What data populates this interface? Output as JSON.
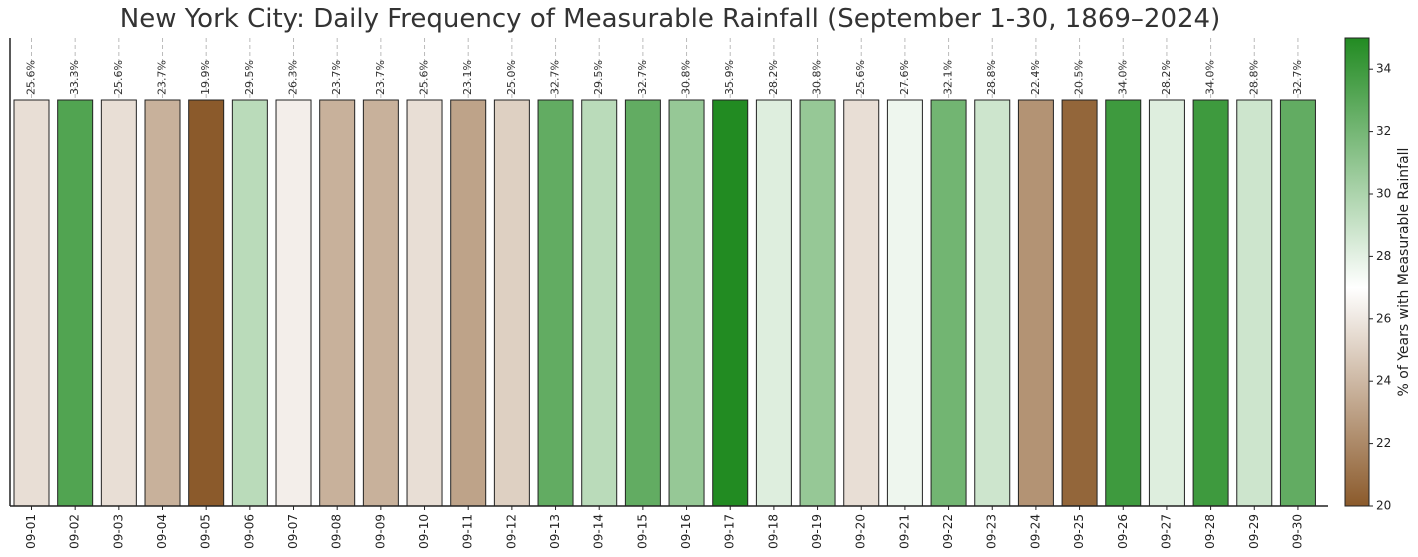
{
  "chart_data": {
    "type": "bar",
    "title": "New York City: Daily Frequency of Measurable Rainfall (September 1-30, 1869–2024)",
    "xlabel": "",
    "ylabel": "",
    "categories": [
      "09-01",
      "09-02",
      "09-03",
      "09-04",
      "09-05",
      "09-06",
      "09-07",
      "09-08",
      "09-09",
      "09-10",
      "09-11",
      "09-12",
      "09-13",
      "09-14",
      "09-15",
      "09-16",
      "09-17",
      "09-18",
      "09-19",
      "09-20",
      "09-21",
      "09-22",
      "09-23",
      "09-24",
      "09-25",
      "09-26",
      "09-27",
      "09-28",
      "09-29",
      "09-30"
    ],
    "values": [
      25.6,
      33.3,
      25.6,
      23.7,
      19.9,
      29.5,
      26.3,
      23.7,
      23.7,
      25.6,
      23.1,
      25.0,
      32.7,
      29.5,
      32.7,
      30.8,
      35.9,
      28.2,
      30.8,
      25.6,
      27.6,
      32.1,
      28.8,
      22.4,
      20.5,
      34.0,
      28.2,
      34.0,
      28.8,
      32.7
    ],
    "value_labels": [
      "25.6%",
      "33.3%",
      "25.6%",
      "23.7%",
      "19.9%",
      "29.5%",
      "26.3%",
      "23.7%",
      "23.7%",
      "25.6%",
      "23.1%",
      "25.0%",
      "32.7%",
      "29.5%",
      "32.7%",
      "30.8%",
      "35.9%",
      "28.2%",
      "30.8%",
      "25.6%",
      "27.6%",
      "32.1%",
      "28.8%",
      "22.4%",
      "20.5%",
      "34.0%",
      "28.2%",
      "34.0%",
      "28.8%",
      "32.7%"
    ],
    "bar_heights_equal": true,
    "colorbar": {
      "label": "% of Years with Measurable Rainfall",
      "range": [
        20,
        35
      ],
      "ticks": [
        "20",
        "22",
        "24",
        "26",
        "28",
        "30",
        "32",
        "34"
      ],
      "colors": [
        "#8B5A2B",
        "#ffffff",
        "#228B22"
      ]
    },
    "grid": "vertical dashed",
    "colors": {
      "low": "#8B5A2B",
      "mid": "#ffffff",
      "high": "#228B22",
      "edge": "#222222"
    }
  }
}
